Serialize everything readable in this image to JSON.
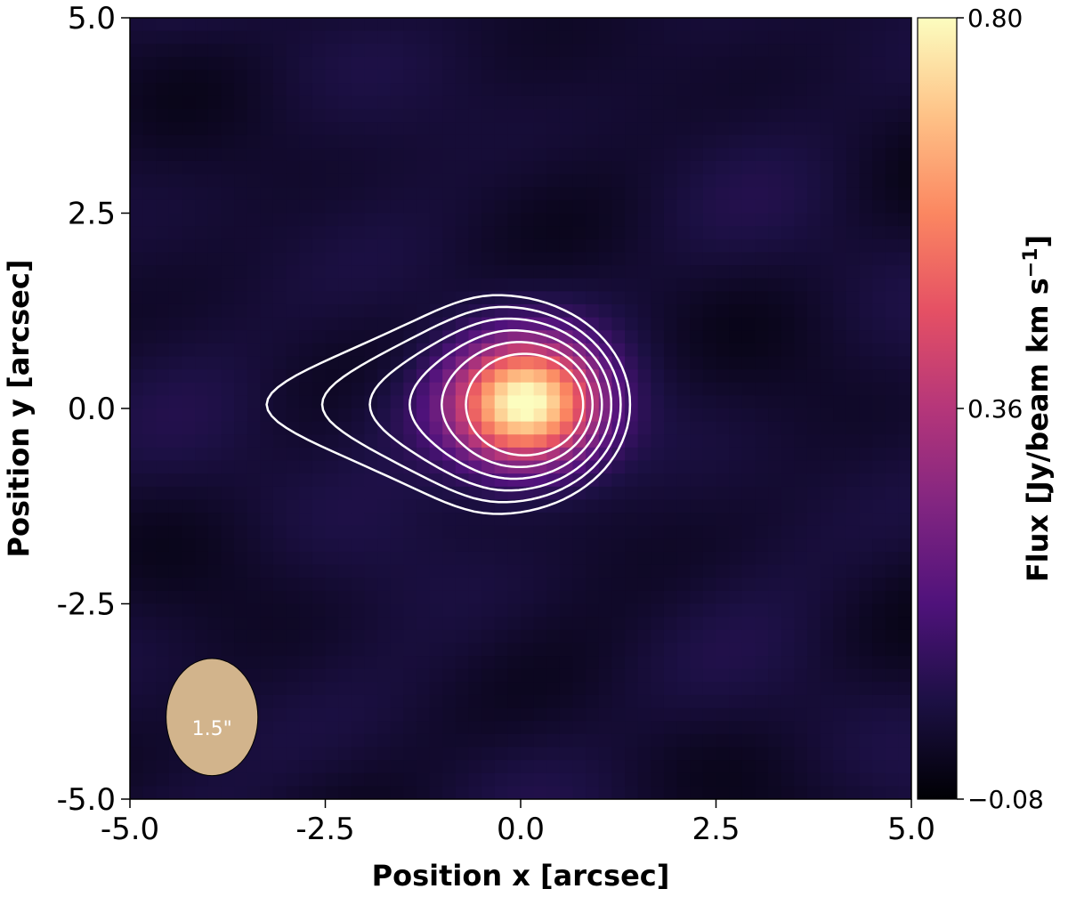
{
  "chart_data": {
    "type": "heatmap",
    "title": "",
    "xlabel": "Position x [arcsec]",
    "ylabel": "Position y [arcsec]",
    "xlim": [
      -5.0,
      5.0
    ],
    "ylim": [
      -5.0,
      5.0
    ],
    "x_ticks": [
      -5.0,
      -2.5,
      0.0,
      2.5,
      5.0
    ],
    "x_tick_labels": [
      "-5.0",
      "-2.5",
      "0.0",
      "2.5",
      "5.0"
    ],
    "y_ticks": [
      -5.0,
      -2.5,
      0.0,
      2.5,
      5.0
    ],
    "y_tick_labels": [
      "-5.0",
      "-2.5",
      "0.0",
      "2.5",
      "5.0"
    ],
    "colormap": "magma",
    "colorbar": {
      "label": "Flux [Jy/beam km s",
      "label_superscript": "−1",
      "label_close": "]",
      "vmin": -0.08,
      "vmax": 0.8,
      "ticks": [
        0.8,
        0.36,
        -0.08
      ],
      "tick_labels": [
        "0.80",
        "0.36",
        "−0.08"
      ]
    },
    "source": {
      "center": [
        0.05,
        0.05
      ],
      "peak_flux": 0.8,
      "sigma_x": 0.65,
      "sigma_y": 0.55
    },
    "contours": {
      "color": "#ffffff",
      "count": 6
    },
    "beam": {
      "label": "1.5\"",
      "center": [
        -3.95,
        -3.95
      ],
      "major_axis": 1.5,
      "minor_axis": 1.35,
      "color": "#d2b48c"
    }
  }
}
